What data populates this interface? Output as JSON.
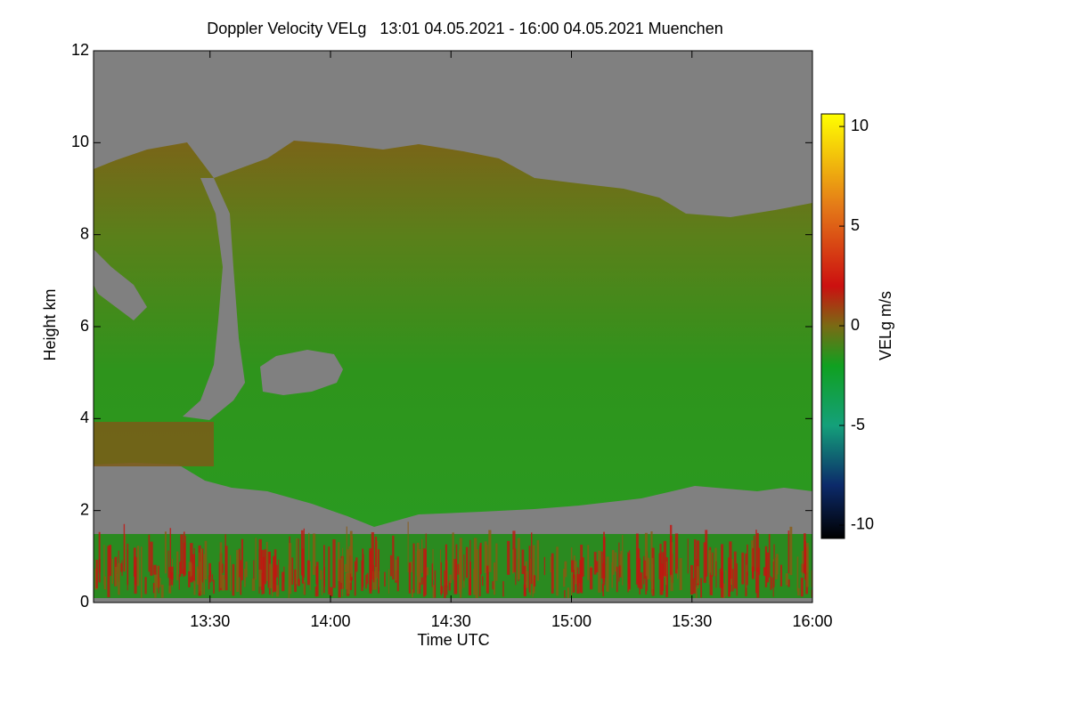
{
  "chart_data": {
    "type": "heatmap",
    "title": "Doppler Velocity VELg   13:01 04.05.2021 - 16:00 04.05.2021 Muenchen",
    "x_label": "Time UTC",
    "y_label": "Height km",
    "xlim": [
      13.0167,
      16.0
    ],
    "xticks": [
      {
        "value": 13.5,
        "label": "13:30"
      },
      {
        "value": 14.0,
        "label": "14:00"
      },
      {
        "value": 14.5,
        "label": "14:30"
      },
      {
        "value": 15.0,
        "label": "15:00"
      },
      {
        "value": 15.5,
        "label": "15:30"
      },
      {
        "value": 16.0,
        "label": "16:00"
      }
    ],
    "ylim": [
      0,
      12
    ],
    "yticks": [
      0,
      2,
      4,
      6,
      8,
      10,
      12
    ],
    "colorbar": {
      "label": "VELg m/s",
      "lim": [
        -10.67,
        10.63
      ],
      "ticks": [
        10,
        5,
        0,
        -5,
        -10
      ],
      "colormap": [
        {
          "value": -10.67,
          "color": "#000000"
        },
        {
          "value": -8,
          "color": "#0c2a6a"
        },
        {
          "value": -5,
          "color": "#14a07a"
        },
        {
          "value": -2,
          "color": "#10a020"
        },
        {
          "value": 0,
          "color": "#7a6a14"
        },
        {
          "value": 2,
          "color": "#cc1010"
        },
        {
          "value": 6,
          "color": "#e47a18"
        },
        {
          "value": 10.63,
          "color": "#ffff00"
        }
      ]
    }
  }
}
